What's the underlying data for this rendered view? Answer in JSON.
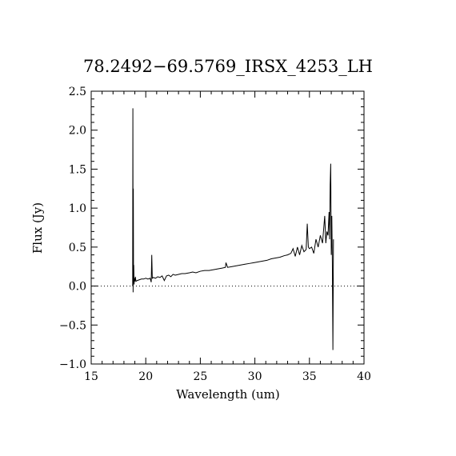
{
  "chart_data": {
    "type": "line",
    "title": "78.2492−69.5769_IRSX_4253_LH",
    "xlabel": "Wavelength (um)",
    "ylabel": "Flux (Jy)",
    "xlim": [
      15,
      40
    ],
    "ylim": [
      -1.0,
      2.5
    ],
    "xticks": [
      15,
      20,
      25,
      30,
      35,
      40
    ],
    "xtick_labels": [
      "15",
      "20",
      "25",
      "30",
      "35",
      "40"
    ],
    "yticks": [
      -1.0,
      -0.5,
      0.0,
      0.5,
      1.0,
      1.5,
      2.0,
      2.5
    ],
    "ytick_labels": [
      "−1.0",
      "−0.5",
      "0.0",
      "0.5",
      "1.0",
      "1.5",
      "2.0",
      "2.5"
    ],
    "zero_line": {
      "y": 0,
      "style": "dotted"
    },
    "grid": false,
    "legend": "none",
    "color": "#000000",
    "series": [
      {
        "x": [
          18.8,
          18.82,
          18.84,
          18.86,
          18.88,
          18.9,
          18.93,
          18.97,
          19.0,
          19.05,
          19.1,
          19.2,
          19.4,
          19.6,
          19.8,
          20.0,
          20.2,
          20.4,
          20.5,
          20.55,
          20.6,
          20.7,
          20.9,
          21.1,
          21.3,
          21.5,
          21.7,
          21.9,
          22.1,
          22.3,
          22.5,
          22.7,
          23.0,
          23.3,
          23.6,
          24.0,
          24.3,
          24.6,
          25.0,
          25.4,
          25.8,
          26.2,
          26.6,
          27.0,
          27.3,
          27.35,
          27.5,
          27.9,
          28.3,
          28.7,
          29.1,
          29.5,
          29.9,
          30.3,
          30.7,
          31.1,
          31.5,
          31.9,
          32.3,
          32.7,
          33.0,
          33.3,
          33.5,
          33.7,
          33.9,
          34.1,
          34.3,
          34.5,
          34.7,
          34.8,
          34.9,
          35.0,
          35.2,
          35.4,
          35.6,
          35.8,
          36.0,
          36.2,
          36.4,
          36.5,
          36.6,
          36.7,
          36.8,
          36.85,
          36.9,
          36.95,
          37.0,
          37.05,
          37.1,
          37.15,
          37.2
        ],
        "y": [
          0.0,
          2.28,
          -0.08,
          1.25,
          0.05,
          0.27,
          0.02,
          0.1,
          0.06,
          0.12,
          0.06,
          0.07,
          0.08,
          0.09,
          0.09,
          0.1,
          0.09,
          0.1,
          0.05,
          0.4,
          0.1,
          0.11,
          0.1,
          0.12,
          0.11,
          0.13,
          0.07,
          0.13,
          0.14,
          0.12,
          0.15,
          0.14,
          0.15,
          0.16,
          0.16,
          0.17,
          0.18,
          0.17,
          0.19,
          0.2,
          0.2,
          0.21,
          0.22,
          0.23,
          0.24,
          0.3,
          0.24,
          0.25,
          0.26,
          0.27,
          0.28,
          0.29,
          0.3,
          0.31,
          0.32,
          0.33,
          0.35,
          0.36,
          0.37,
          0.39,
          0.4,
          0.42,
          0.48,
          0.38,
          0.5,
          0.4,
          0.52,
          0.44,
          0.47,
          0.8,
          0.5,
          0.48,
          0.5,
          0.42,
          0.6,
          0.5,
          0.65,
          0.55,
          0.9,
          0.55,
          0.7,
          0.65,
          0.95,
          0.6,
          1.3,
          1.57,
          0.4,
          0.9,
          0.3,
          -0.82,
          0.6
        ]
      }
    ]
  }
}
